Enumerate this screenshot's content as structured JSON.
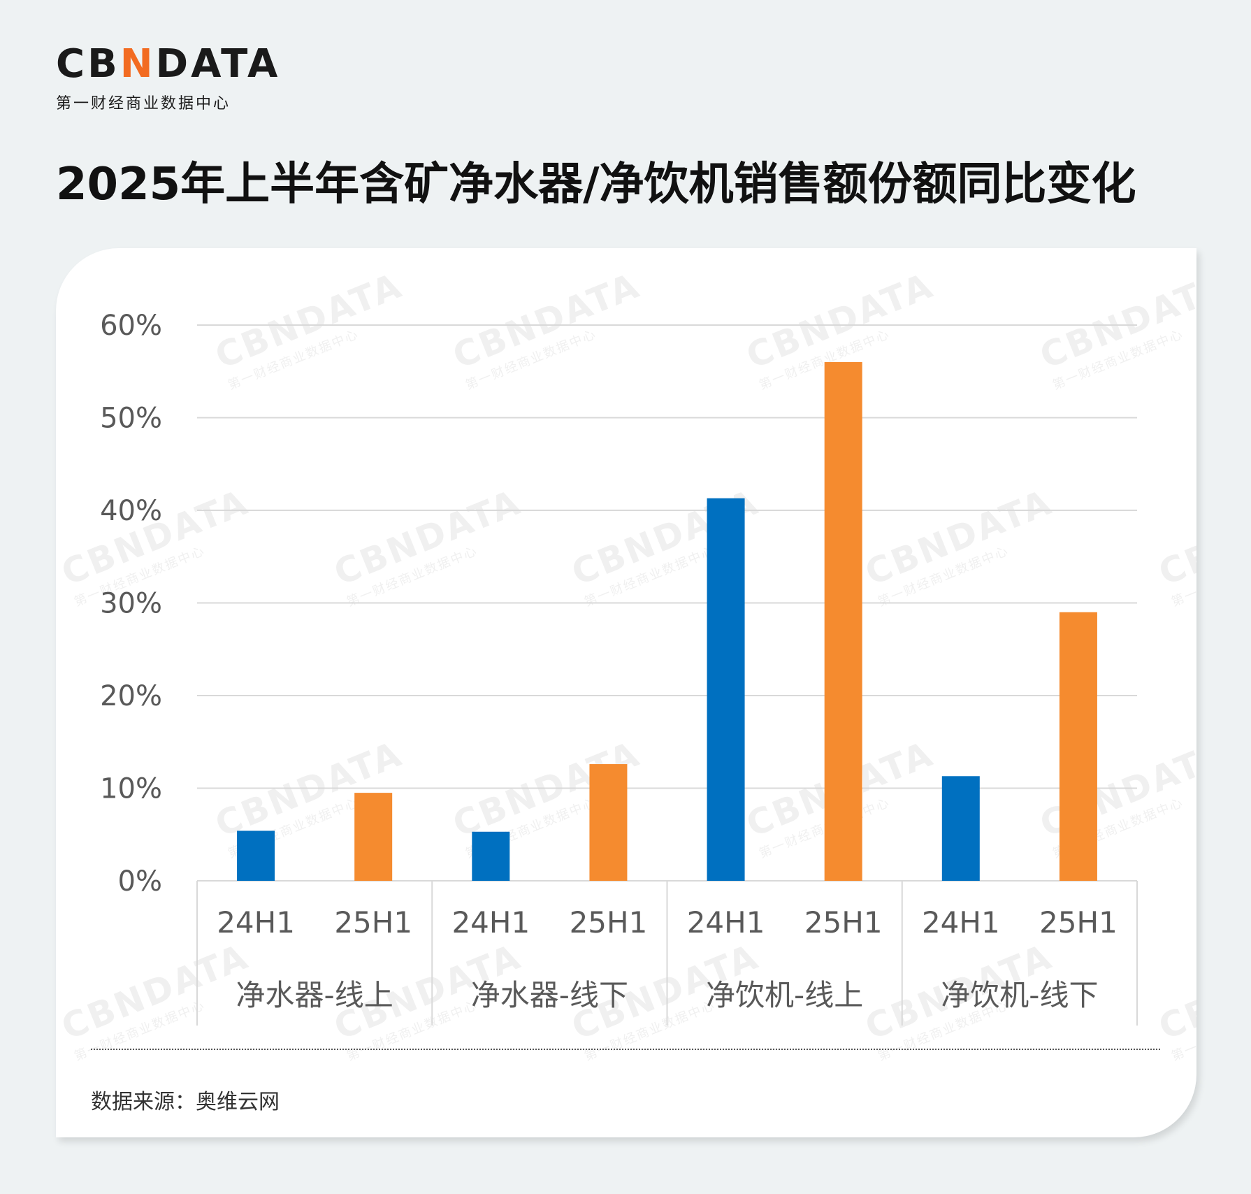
{
  "brand": {
    "logo_prefix": "CB",
    "logo_accent": "N",
    "logo_suffix": "DATA",
    "subtitle": "第一财经商业数据中心",
    "watermark_text": "CBNDATA",
    "watermark_sub": "第一财经商业数据中心"
  },
  "title": "2025年上半年含矿净水器/净饮机销售额份额同比变化",
  "source": "数据来源：奥维云网",
  "colors": {
    "series_24H1": "#0070c0",
    "series_25H1": "#f58b2f",
    "accent": "#f26b21",
    "grid": "#d9d9d9",
    "tick_text": "#595959"
  },
  "chart_data": {
    "type": "bar",
    "title": "2025年上半年含矿净水器/净饮机销售额份额同比变化",
    "groups": [
      "净水器-线上",
      "净水器-线下",
      "净饮机-线上",
      "净饮机-线下"
    ],
    "series": [
      {
        "name": "24H1",
        "values": [
          5.4,
          5.3,
          41.3,
          11.3
        ]
      },
      {
        "name": "25H1",
        "values": [
          9.5,
          12.6,
          56.0,
          29.0
        ]
      }
    ],
    "ylim": [
      0,
      60
    ],
    "yticks": [
      "0%",
      "10%",
      "20%",
      "30%",
      "40%",
      "50%",
      "60%"
    ],
    "ytick_values": [
      0,
      10,
      20,
      30,
      40,
      50,
      60
    ],
    "xlabel": "",
    "ylabel": "",
    "grid": true,
    "legend": "none"
  }
}
